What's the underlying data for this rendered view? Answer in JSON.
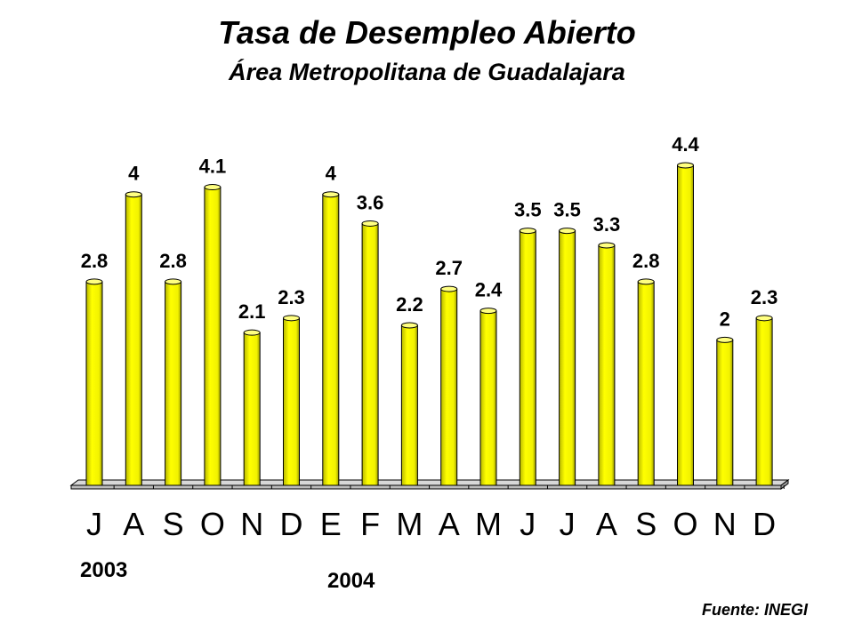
{
  "chart_data": {
    "type": "bar",
    "title": "Tasa de Desempleo Abierto",
    "subtitle": "Área Metropolitana de Guadalajara",
    "categories": [
      "J",
      "A",
      "S",
      "O",
      "N",
      "D",
      "E",
      "F",
      "M",
      "A",
      "M",
      "J",
      "J",
      "A",
      "S",
      "O",
      "N",
      "D"
    ],
    "values": [
      2.8,
      4,
      2.8,
      4.1,
      2.1,
      2.3,
      4,
      3.6,
      2.2,
      2.7,
      2.4,
      3.5,
      3.5,
      3.3,
      2.8,
      4.4,
      2,
      2.3
    ],
    "ylim": [
      0,
      4.6
    ],
    "grid": false,
    "legend": "none",
    "bar_color": "#ffff00",
    "year_labels": [
      "2003",
      "2004"
    ],
    "source": "Fuente: INEGI"
  }
}
